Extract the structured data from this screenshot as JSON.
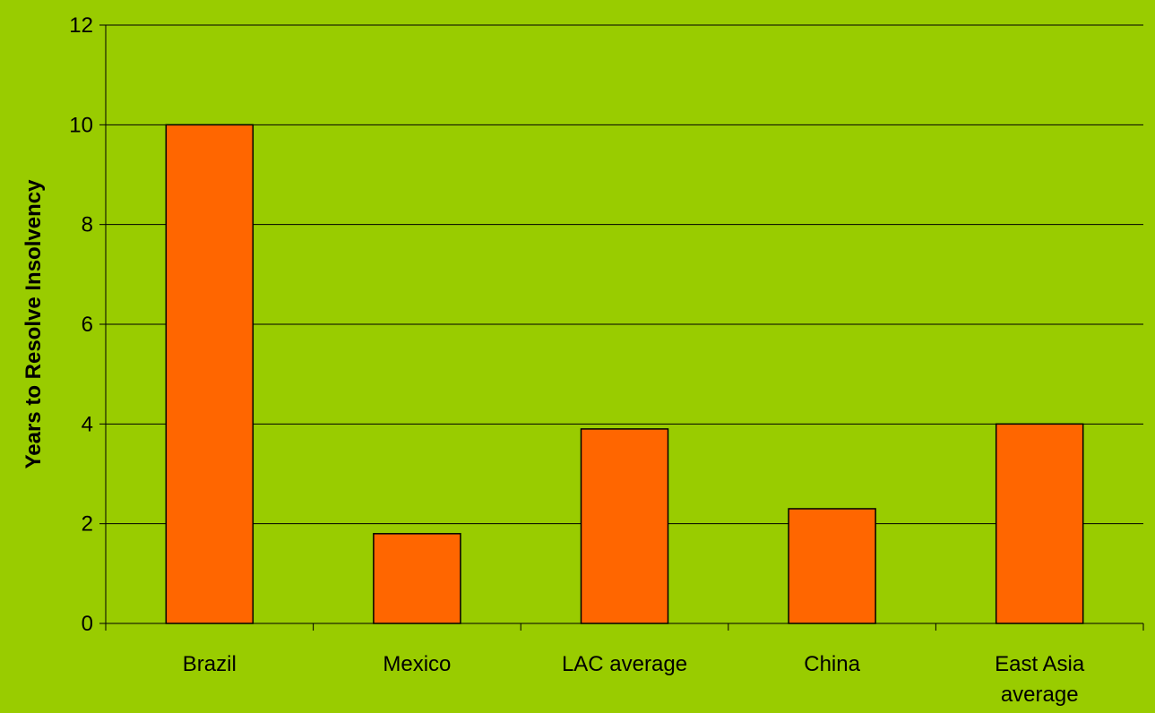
{
  "chart_data": {
    "type": "bar",
    "title": "",
    "xlabel": "",
    "ylabel": "Years to Resolve Insolvency",
    "categories": [
      "Brazil",
      "Mexico",
      "LAC average",
      "China",
      "East Asia average"
    ],
    "category_lines": [
      [
        "Brazil"
      ],
      [
        "Mexico"
      ],
      [
        "LAC average"
      ],
      [
        "China"
      ],
      [
        "East Asia",
        "average"
      ]
    ],
    "values": [
      10,
      1.8,
      3.9,
      2.3,
      4.0
    ],
    "ylim": [
      0,
      12
    ],
    "yticks": [
      0,
      2,
      4,
      6,
      8,
      10,
      12
    ],
    "grid": "horizontal",
    "legend": "none",
    "colors": {
      "background": "#99cc00",
      "bar_fill": "#ff6600",
      "bar_stroke": "#000000",
      "gridline": "#000000",
      "axis": "#000000"
    }
  }
}
